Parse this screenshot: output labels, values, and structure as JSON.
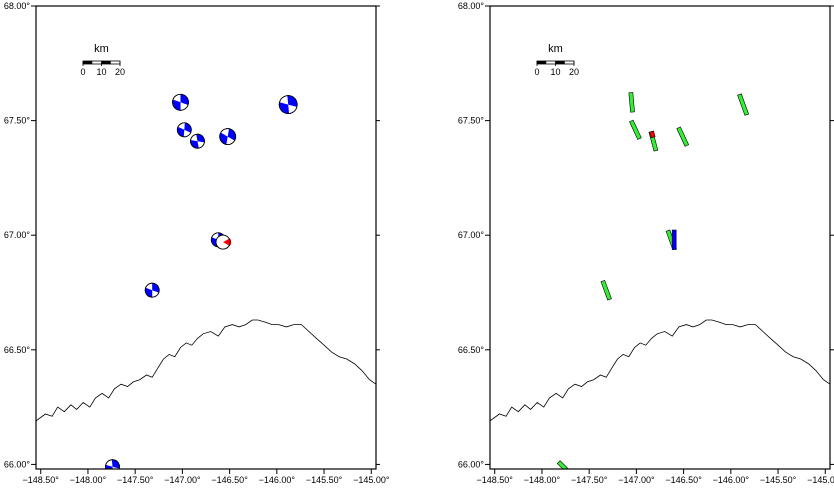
{
  "map": {
    "lon_range": [
      -148.55,
      -144.95
    ],
    "lat_range": [
      65.98,
      68.0
    ],
    "x_ticks": [
      {
        "value": -148.5,
        "label": "−148.50°"
      },
      {
        "value": -148.0,
        "label": "−148.00°"
      },
      {
        "value": -147.5,
        "label": "−147.50°"
      },
      {
        "value": -147.0,
        "label": "−147.00°"
      },
      {
        "value": -146.5,
        "label": "−146.50°"
      },
      {
        "value": -146.0,
        "label": "−146.00°"
      },
      {
        "value": -145.5,
        "label": "−145.50°"
      },
      {
        "value": -145.0,
        "label": "−145.00°"
      }
    ],
    "y_ticks": [
      {
        "value": 68.0,
        "label": "68.00°"
      },
      {
        "value": 67.5,
        "label": "67.50°"
      },
      {
        "value": 67.0,
        "label": "67.00°"
      },
      {
        "value": 66.5,
        "label": "66.50°"
      },
      {
        "value": 66.0,
        "label": "66.00°"
      }
    ],
    "scalebar": {
      "unit": "km",
      "labels": [
        "0",
        "10",
        "20"
      ]
    },
    "colors": {
      "beachball_fill": "#0000ff",
      "highlight": "#ff0000",
      "fault_fill": "#33ee33",
      "fault_highlight_blue": "#0000ff",
      "coastline": "#000000"
    },
    "coastline": [
      [
        -148.55,
        66.19
      ],
      [
        -148.45,
        66.22
      ],
      [
        -148.38,
        66.21
      ],
      [
        -148.32,
        66.25
      ],
      [
        -148.25,
        66.23
      ],
      [
        -148.18,
        66.26
      ],
      [
        -148.12,
        66.24
      ],
      [
        -148.05,
        66.27
      ],
      [
        -147.98,
        66.25
      ],
      [
        -147.92,
        66.29
      ],
      [
        -147.85,
        66.31
      ],
      [
        -147.78,
        66.29
      ],
      [
        -147.72,
        66.33
      ],
      [
        -147.65,
        66.35
      ],
      [
        -147.58,
        66.34
      ],
      [
        -147.52,
        66.36
      ],
      [
        -147.45,
        66.37
      ],
      [
        -147.38,
        66.39
      ],
      [
        -147.32,
        66.38
      ],
      [
        -147.26,
        66.42
      ],
      [
        -147.2,
        66.46
      ],
      [
        -147.14,
        66.48
      ],
      [
        -147.08,
        66.47
      ],
      [
        -147.02,
        66.51
      ],
      [
        -146.96,
        66.53
      ],
      [
        -146.9,
        66.52
      ],
      [
        -146.84,
        66.55
      ],
      [
        -146.78,
        66.57
      ],
      [
        -146.7,
        66.58
      ],
      [
        -146.62,
        66.56
      ],
      [
        -146.55,
        66.6
      ],
      [
        -146.47,
        66.61
      ],
      [
        -146.4,
        66.6
      ],
      [
        -146.33,
        66.61
      ],
      [
        -146.26,
        66.63
      ],
      [
        -146.2,
        66.63
      ],
      [
        -146.12,
        66.62
      ],
      [
        -146.05,
        66.61
      ],
      [
        -145.98,
        66.61
      ],
      [
        -145.9,
        66.6
      ],
      [
        -145.82,
        66.61
      ],
      [
        -145.74,
        66.61
      ],
      [
        -145.66,
        66.58
      ],
      [
        -145.58,
        66.55
      ],
      [
        -145.5,
        66.52
      ],
      [
        -145.42,
        66.49
      ],
      [
        -145.34,
        66.47
      ],
      [
        -145.26,
        66.46
      ],
      [
        -145.18,
        66.44
      ],
      [
        -145.1,
        66.41
      ],
      [
        -145.02,
        66.37
      ],
      [
        -144.95,
        66.35
      ]
    ],
    "events": [
      {
        "lon": -147.02,
        "lat": 67.58,
        "size": 16,
        "rot": 20,
        "highlight": false
      },
      {
        "lon": -145.88,
        "lat": 67.57,
        "size": 18,
        "rot": 15,
        "highlight": false
      },
      {
        "lon": -146.98,
        "lat": 67.46,
        "size": 14,
        "rot": 25,
        "highlight": false
      },
      {
        "lon": -146.84,
        "lat": 67.41,
        "size": 14,
        "rot": 10,
        "highlight": false
      },
      {
        "lon": -146.52,
        "lat": 67.43,
        "size": 16,
        "rot": 30,
        "highlight": false
      },
      {
        "lon": -146.62,
        "lat": 66.98,
        "size": 14,
        "rot": 20,
        "highlight": false
      },
      {
        "lon": -146.57,
        "lat": 66.97,
        "size": 14,
        "rot": 0,
        "highlight": true
      },
      {
        "lon": -147.32,
        "lat": 66.76,
        "size": 14,
        "rot": 20,
        "highlight": false
      },
      {
        "lon": -147.74,
        "lat": 65.99,
        "size": 14,
        "rot": 15,
        "highlight": false
      }
    ],
    "faults": [
      {
        "lon": -147.05,
        "lat": 67.58,
        "len_km": 10,
        "strike": 5,
        "color": "green"
      },
      {
        "lon": -147.01,
        "lat": 67.46,
        "len_km": 10,
        "strike": 25,
        "color": "green"
      },
      {
        "lon": -146.82,
        "lat": 67.41,
        "len_km": 10,
        "strike": 15,
        "color": "green"
      },
      {
        "lon": -146.83,
        "lat": 67.44,
        "len_km": 3,
        "strike": 15,
        "color": "red"
      },
      {
        "lon": -146.51,
        "lat": 67.43,
        "len_km": 10,
        "strike": 25,
        "color": "green"
      },
      {
        "lon": -145.87,
        "lat": 67.57,
        "len_km": 11,
        "strike": 20,
        "color": "green"
      },
      {
        "lon": -146.63,
        "lat": 66.98,
        "len_km": 10,
        "strike": 20,
        "color": "green"
      },
      {
        "lon": -146.6,
        "lat": 66.98,
        "len_km": 10,
        "strike": 0,
        "color": "blue"
      },
      {
        "lon": -147.32,
        "lat": 66.76,
        "len_km": 10,
        "strike": 20,
        "color": "green"
      },
      {
        "lon": -147.75,
        "lat": 65.98,
        "len_km": 10,
        "strike": 45,
        "color": "green"
      }
    ]
  }
}
